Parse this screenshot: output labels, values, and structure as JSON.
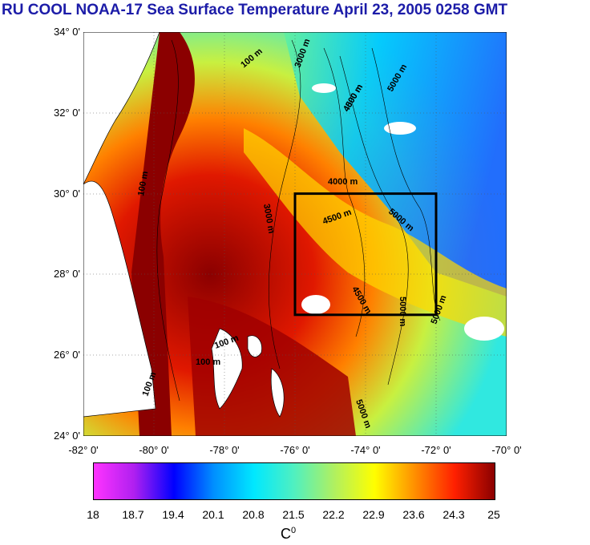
{
  "title": "RU COOL  NOAA-17 Sea Surface Temperature April 23, 2005 0258 GMT",
  "map": {
    "lat_labels": [
      "34° 0'",
      "32° 0'",
      "30° 0'",
      "28° 0'",
      "26° 0'",
      "24° 0'"
    ],
    "lon_labels": [
      "-82° 0'",
      "-80° 0'",
      "-78° 0'",
      "-76° 0'",
      "-74° 0'",
      "-72° 0'",
      "-70° 0'"
    ],
    "lat_range": [
      24,
      34
    ],
    "lon_range": [
      -82,
      -70
    ],
    "box": {
      "lon": [
        -76,
        -72
      ],
      "lat": [
        27,
        30
      ]
    },
    "contours": [
      "100 m",
      "100 m",
      "100 m",
      "100 m",
      "100 m",
      "3000 m",
      "3000 m",
      "4000 m",
      "4000 m",
      "4500 m",
      "4500 m",
      "4500 m",
      "5000 m",
      "5000 m",
      "5000 m",
      "5000 m",
      "5000 m"
    ]
  },
  "colorbar": {
    "ticks": [
      "18",
      "18.7",
      "19.4",
      "20.1",
      "20.8",
      "21.5",
      "22.2",
      "22.9",
      "23.6",
      "24.3",
      "25"
    ],
    "unit": "C",
    "unit_sup": "0",
    "colors": [
      "#ff33ff",
      "#b020f0",
      "#0000ff",
      "#0090ff",
      "#00e8ff",
      "#50f0c0",
      "#b0f060",
      "#ffff00",
      "#ff9000",
      "#ff2000",
      "#8b0000"
    ]
  }
}
